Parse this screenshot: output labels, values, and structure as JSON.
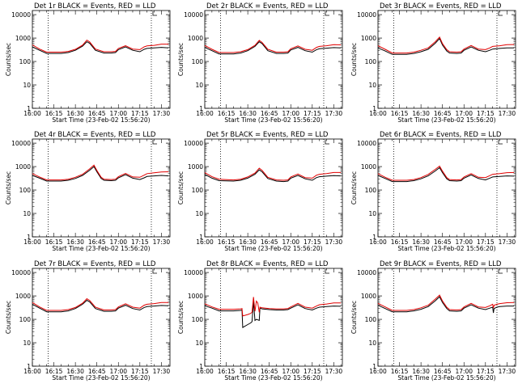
{
  "figure": {
    "background": "#ffffff",
    "event_color": "#000000",
    "lld_color": "#e00000",
    "marker_color": "#000000"
  },
  "shared_axes": {
    "xlabel": "Start Time (23-Feb-02 15:56:20)",
    "ylabel": "Counts/sec",
    "x_tick_labels": [
      "16:00",
      "16:15",
      "16:30",
      "16:45",
      "17:00",
      "17:15",
      "17:30"
    ],
    "x_tick_minutes": [
      0,
      15,
      30,
      45,
      60,
      75,
      90
    ],
    "y_tick_labels": [
      "1",
      "10",
      "100",
      "1000",
      "10000"
    ],
    "y_tick_values": [
      1,
      10,
      100,
      1000,
      10000
    ],
    "ylim": [
      1,
      15000
    ],
    "xlim_minutes": [
      0,
      96
    ],
    "y_scale": "log",
    "dotted_vlines_minutes": [
      11,
      83
    ]
  },
  "chart_data": [
    {
      "type": "line",
      "title": "Det 1r BLACK = Events, RED = LLD",
      "series": [
        {
          "name": "Events",
          "x": [
            0,
            5,
            10,
            20,
            25,
            30,
            35,
            38,
            40,
            44,
            50,
            55,
            58,
            60,
            65,
            70,
            75,
            78,
            80,
            85,
            90,
            95
          ],
          "y": [
            420,
            300,
            220,
            220,
            240,
            300,
            450,
            700,
            600,
            300,
            230,
            230,
            240,
            320,
            420,
            300,
            260,
            330,
            360,
            380,
            400,
            380
          ]
        },
        {
          "name": "LLD",
          "x": [
            0,
            5,
            10,
            20,
            25,
            30,
            35,
            38,
            40,
            44,
            50,
            55,
            58,
            60,
            65,
            70,
            75,
            78,
            80,
            85,
            90,
            95
          ],
          "y": [
            510,
            340,
            250,
            250,
            270,
            330,
            500,
            820,
            680,
            340,
            260,
            260,
            270,
            360,
            470,
            340,
            320,
            420,
            460,
            490,
            550,
            550
          ]
        }
      ]
    },
    {
      "type": "line",
      "title": "Det 2r BLACK = Events, RED = LLD",
      "series": [
        {
          "name": "Events",
          "x": [
            0,
            5,
            10,
            20,
            25,
            30,
            35,
            38,
            40,
            44,
            50,
            55,
            58,
            60,
            65,
            70,
            75,
            78,
            80,
            85,
            90,
            95
          ],
          "y": [
            400,
            290,
            210,
            210,
            230,
            290,
            440,
            690,
            580,
            290,
            220,
            220,
            230,
            310,
            400,
            290,
            250,
            320,
            350,
            370,
            390,
            380
          ]
        },
        {
          "name": "LLD",
          "x": [
            0,
            5,
            10,
            20,
            25,
            30,
            35,
            38,
            40,
            44,
            50,
            55,
            58,
            60,
            65,
            70,
            75,
            78,
            80,
            85,
            90,
            95
          ],
          "y": [
            480,
            330,
            240,
            240,
            260,
            320,
            490,
            800,
            650,
            330,
            250,
            250,
            260,
            350,
            460,
            330,
            300,
            400,
            440,
            470,
            520,
            510
          ]
        }
      ]
    },
    {
      "type": "line",
      "title": "Det 3r BLACK = Events, RED = LLD",
      "series": [
        {
          "name": "Events",
          "x": [
            0,
            5,
            10,
            20,
            25,
            30,
            35,
            40,
            43,
            45,
            48,
            50,
            55,
            58,
            60,
            65,
            70,
            75,
            78,
            80,
            85,
            90,
            95
          ],
          "y": [
            380,
            280,
            200,
            200,
            220,
            260,
            330,
            600,
            950,
            500,
            280,
            230,
            220,
            230,
            300,
            420,
            300,
            260,
            300,
            340,
            360,
            380,
            380
          ]
        },
        {
          "name": "LLD",
          "x": [
            0,
            5,
            10,
            20,
            25,
            30,
            35,
            40,
            43,
            45,
            48,
            50,
            55,
            58,
            60,
            65,
            70,
            75,
            78,
            80,
            85,
            90,
            95
          ],
          "y": [
            470,
            330,
            230,
            230,
            250,
            300,
            380,
            700,
            1100,
            580,
            320,
            260,
            250,
            260,
            340,
            480,
            340,
            320,
            380,
            440,
            470,
            520,
            530
          ]
        }
      ]
    },
    {
      "type": "line",
      "title": "Det 4r BLACK = Events, RED = LLD",
      "series": [
        {
          "name": "Events",
          "x": [
            0,
            5,
            10,
            20,
            25,
            30,
            35,
            40,
            43,
            45,
            48,
            50,
            55,
            58,
            60,
            65,
            70,
            75,
            78,
            80,
            85,
            90,
            95
          ],
          "y": [
            420,
            320,
            240,
            240,
            260,
            310,
            420,
            700,
            1000,
            600,
            310,
            260,
            250,
            260,
            330,
            450,
            320,
            280,
            330,
            380,
            400,
            420,
            400
          ]
        },
        {
          "name": "LLD",
          "x": [
            0,
            5,
            10,
            20,
            25,
            30,
            35,
            40,
            43,
            45,
            48,
            50,
            55,
            58,
            60,
            65,
            70,
            75,
            78,
            80,
            85,
            90,
            95
          ],
          "y": [
            500,
            360,
            270,
            270,
            290,
            350,
            470,
            800,
            1150,
            680,
            350,
            290,
            280,
            290,
            370,
            510,
            360,
            350,
            430,
            500,
            540,
            590,
            600
          ]
        }
      ]
    },
    {
      "type": "line",
      "title": "Det 5r BLACK = Events, RED = LLD",
      "series": [
        {
          "name": "Events",
          "x": [
            0,
            5,
            10,
            20,
            25,
            30,
            35,
            38,
            40,
            44,
            50,
            55,
            58,
            60,
            65,
            70,
            75,
            78,
            80,
            85,
            90,
            95
          ],
          "y": [
            460,
            320,
            250,
            240,
            260,
            320,
            470,
            720,
            600,
            310,
            240,
            230,
            240,
            320,
            420,
            300,
            260,
            340,
            370,
            390,
            410,
            400
          ]
        },
        {
          "name": "LLD",
          "x": [
            0,
            5,
            10,
            20,
            25,
            30,
            35,
            38,
            40,
            44,
            50,
            55,
            58,
            60,
            65,
            70,
            75,
            78,
            80,
            85,
            90,
            95
          ],
          "y": [
            550,
            370,
            290,
            270,
            290,
            360,
            530,
            850,
            690,
            350,
            270,
            260,
            270,
            360,
            480,
            340,
            320,
            430,
            470,
            500,
            560,
            560
          ]
        }
      ]
    },
    {
      "type": "line",
      "title": "Det 6r BLACK = Events, RED = LLD",
      "series": [
        {
          "name": "Events",
          "x": [
            0,
            5,
            10,
            20,
            25,
            30,
            35,
            40,
            43,
            45,
            48,
            50,
            55,
            58,
            60,
            65,
            70,
            75,
            78,
            80,
            85,
            90,
            95
          ],
          "y": [
            420,
            310,
            230,
            230,
            250,
            300,
            400,
            650,
            900,
            550,
            300,
            250,
            240,
            250,
            320,
            440,
            310,
            270,
            320,
            360,
            380,
            400,
            390
          ]
        },
        {
          "name": "LLD",
          "x": [
            0,
            5,
            10,
            20,
            25,
            30,
            35,
            40,
            43,
            45,
            48,
            50,
            55,
            58,
            60,
            65,
            70,
            75,
            78,
            80,
            85,
            90,
            95
          ],
          "y": [
            500,
            350,
            260,
            260,
            280,
            340,
            460,
            760,
            1050,
            640,
            340,
            280,
            270,
            280,
            360,
            500,
            350,
            340,
            410,
            470,
            500,
            550,
            560
          ]
        }
      ]
    },
    {
      "type": "line",
      "title": "Det 7r BLACK = Events, RED = LLD",
      "series": [
        {
          "name": "Events",
          "x": [
            0,
            5,
            10,
            20,
            25,
            30,
            35,
            38,
            40,
            44,
            50,
            55,
            58,
            60,
            65,
            70,
            75,
            78,
            80,
            85,
            90,
            95
          ],
          "y": [
            440,
            300,
            210,
            210,
            230,
            290,
            440,
            650,
            560,
            290,
            220,
            220,
            230,
            300,
            400,
            290,
            250,
            320,
            350,
            370,
            390,
            380
          ]
        },
        {
          "name": "LLD",
          "x": [
            0,
            5,
            10,
            20,
            25,
            30,
            35,
            38,
            40,
            44,
            50,
            55,
            58,
            60,
            65,
            70,
            75,
            78,
            80,
            85,
            90,
            95
          ],
          "y": [
            520,
            340,
            240,
            240,
            260,
            320,
            490,
            760,
            640,
            330,
            250,
            250,
            260,
            340,
            460,
            330,
            300,
            400,
            440,
            470,
            520,
            520
          ]
        }
      ]
    },
    {
      "type": "line",
      "title": "Det 8r BLACK = Events, RED = LLD",
      "series": [
        {
          "name": "Events",
          "x": [
            0,
            5,
            10,
            20,
            25,
            26,
            26.5,
            30,
            32,
            33,
            34,
            35,
            36,
            37,
            38,
            38.5,
            40,
            45,
            50,
            55,
            58,
            60,
            65,
            70,
            75,
            78,
            80,
            85,
            90,
            95
          ],
          "y": [
            380,
            300,
            230,
            230,
            240,
            250,
            45,
            60,
            70,
            80,
            600,
            90,
            100,
            95,
            90,
            300,
            280,
            260,
            250,
            250,
            260,
            300,
            420,
            290,
            250,
            300,
            330,
            350,
            370,
            360
          ]
        },
        {
          "name": "LLD",
          "x": [
            0,
            5,
            10,
            20,
            25,
            26,
            26.5,
            30,
            32,
            33,
            34,
            35,
            36,
            37,
            38,
            38.5,
            40,
            45,
            50,
            55,
            58,
            60,
            65,
            70,
            75,
            78,
            80,
            85,
            90,
            95
          ],
          "y": [
            460,
            340,
            270,
            270,
            280,
            290,
            140,
            160,
            180,
            200,
            900,
            220,
            600,
            500,
            200,
            330,
            310,
            290,
            280,
            280,
            290,
            340,
            480,
            330,
            300,
            370,
            420,
            450,
            500,
            500
          ]
        }
      ]
    },
    {
      "type": "line",
      "title": "Det 9r BLACK = Events, RED = LLD",
      "series": [
        {
          "name": "Events",
          "x": [
            0,
            5,
            10,
            20,
            25,
            30,
            35,
            40,
            43,
            45,
            48,
            50,
            55,
            58,
            60,
            65,
            70,
            75,
            78,
            80,
            80.5,
            81,
            83,
            85,
            90,
            95
          ],
          "y": [
            400,
            290,
            210,
            210,
            230,
            270,
            350,
            620,
            920,
            520,
            290,
            230,
            220,
            230,
            300,
            420,
            300,
            260,
            300,
            330,
            190,
            290,
            330,
            350,
            370,
            370
          ]
        },
        {
          "name": "LLD",
          "x": [
            0,
            5,
            10,
            20,
            25,
            30,
            35,
            40,
            43,
            45,
            48,
            50,
            55,
            58,
            60,
            65,
            70,
            75,
            78,
            80,
            80.5,
            81,
            83,
            85,
            90,
            95
          ],
          "y": [
            480,
            340,
            240,
            240,
            260,
            310,
            400,
            730,
            1080,
            610,
            330,
            260,
            250,
            260,
            340,
            480,
            340,
            320,
            380,
            440,
            300,
            400,
            440,
            470,
            510,
            520
          ]
        }
      ]
    }
  ]
}
